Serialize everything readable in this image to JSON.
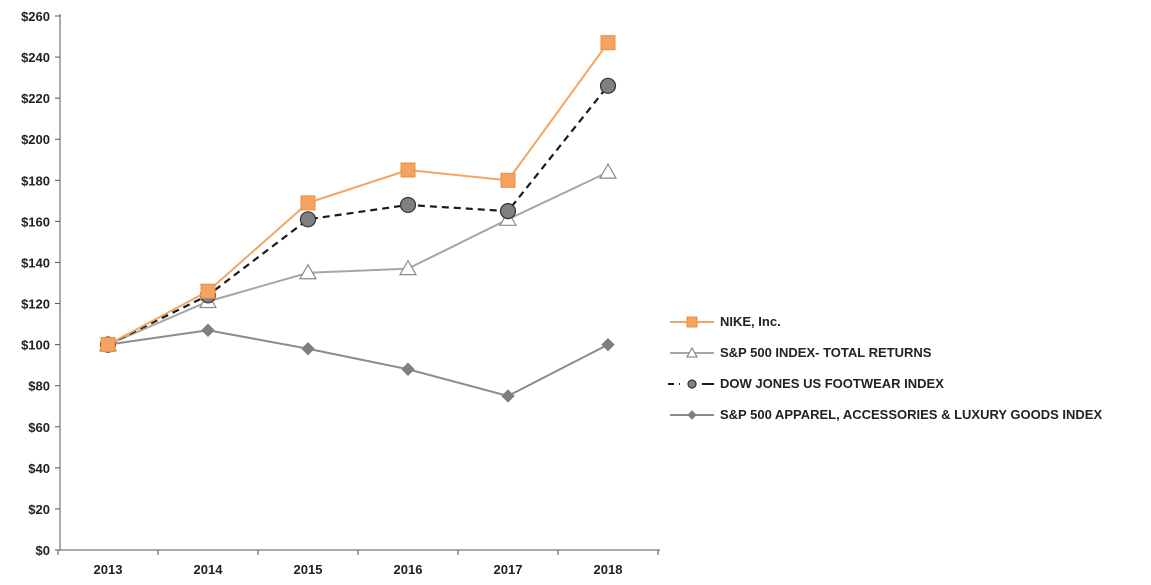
{
  "chart_data": {
    "type": "line",
    "categories": [
      "2013",
      "2014",
      "2015",
      "2016",
      "2017",
      "2018"
    ],
    "ylim": [
      0,
      260
    ],
    "y_tick_step": 20,
    "y_tick_labels": [
      "$0",
      "$20",
      "$40",
      "$60",
      "$80",
      "$100",
      "$120",
      "$140",
      "$160",
      "$180",
      "$200",
      "$220",
      "$240",
      "$260"
    ],
    "grid": false,
    "legend_position": "right",
    "series": [
      {
        "name": "NIKE, Inc.",
        "values": [
          100,
          126,
          169,
          185,
          180,
          247
        ],
        "color": "#f4a460",
        "marker": "square",
        "dash": false
      },
      {
        "name": "S&P 500 INDEX- TOTAL RETURNS",
        "values": [
          100,
          121,
          135,
          137,
          161,
          184
        ],
        "color": "#a6a6a6",
        "marker": "triangle-open",
        "dash": false
      },
      {
        "name": "DOW JONES US FOOTWEAR INDEX",
        "values": [
          100,
          124,
          161,
          168,
          165,
          226
        ],
        "color": "#1a1a1a",
        "marker": "circle-gray",
        "dash": true
      },
      {
        "name": "S&P 500 APPAREL, ACCESSORIES & LUXURY GOODS INDEX",
        "values": [
          100,
          107,
          98,
          88,
          75,
          100
        ],
        "color": "#8c8c8c",
        "marker": "diamond",
        "dash": false
      }
    ]
  }
}
